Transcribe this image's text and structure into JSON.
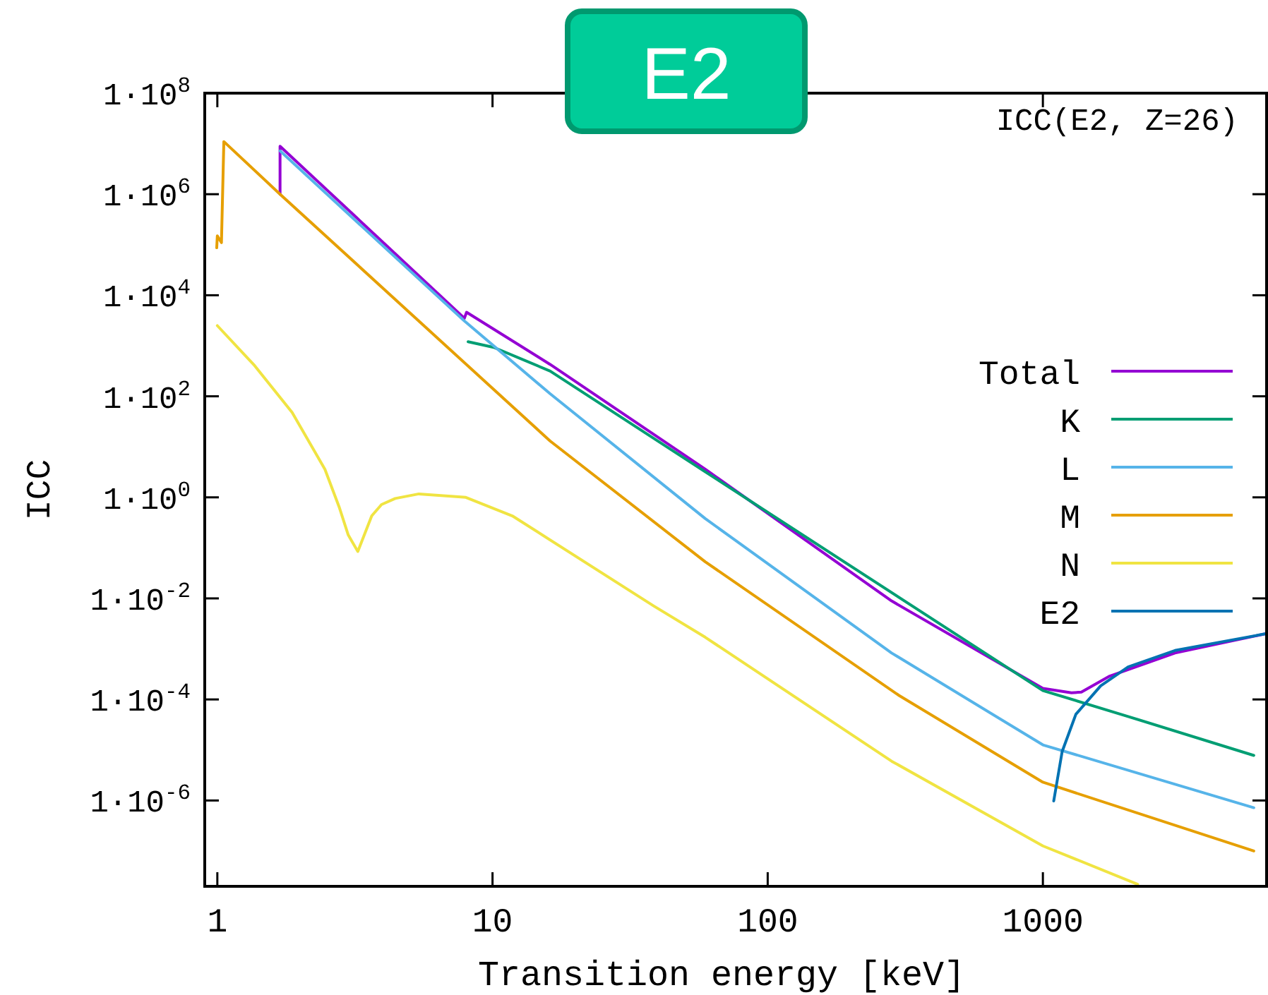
{
  "chart_data": {
    "type": "line",
    "title": "E2",
    "xlabel": "Transition energy [keV]",
    "ylabel": "ICC",
    "annotations": [
      "ICC(E2, Z=26)"
    ],
    "log": "xy",
    "xlim": [
      0.9,
      6500
    ],
    "ylim": [
      2e-08,
      100000000.0
    ],
    "xticks": [
      1,
      10,
      100,
      1000
    ],
    "yticks": [
      {
        "value": 100000000.0,
        "label": "1·10$^{8}$"
      },
      {
        "value": 1000000.0,
        "label": "1·10$^{6}$"
      },
      {
        "value": 10000.0,
        "label": "1·10$^{4}$"
      },
      {
        "value": 100,
        "label": "1·10$^{2}$"
      },
      {
        "value": 1,
        "label": "1·10$^{0}$"
      },
      {
        "value": 0.01,
        "label": "1·10$^{-2}$"
      },
      {
        "value": 0.0001,
        "label": "1·10$^{-4}$"
      },
      {
        "value": 1e-06,
        "label": "1·10$^{-6}$"
      }
    ],
    "legend": "right",
    "line_style": "solid",
    "marker": "none",
    "series": [
      {
        "name": "Total",
        "color": "#9400d3",
        "x": [
          1.69,
          1.69,
          7.9,
          8.05,
          16.2,
          59.3,
          282,
          1000,
          1270,
          1380,
          1750,
          3020,
          6460
        ],
        "values": [
          1000000,
          8900000,
          3500,
          4600,
          427,
          3.6,
          0.0089,
          0.000166,
          0.000135,
          0.00014,
          0.00029,
          0.00083,
          0.002
        ]
      },
      {
        "name": "K",
        "color": "#009e73",
        "x": [
          8.15,
          10.1,
          16.2,
          59.3,
          1000,
          2040,
          5840
        ],
        "values": [
          1200,
          930,
          316,
          3.2,
          0.00015,
          4.6e-05,
          7.8e-06
        ]
      },
      {
        "name": "L",
        "color": "#56b4e9",
        "x": [
          1.69,
          7.9,
          16.2,
          59.3,
          282,
          1000,
          5840
        ],
        "values": [
          7200000,
          3100,
          112,
          0.38,
          0.00083,
          1.26e-05,
          7.2e-07
        ]
      },
      {
        "name": "M",
        "color": "#e69f00",
        "x": [
          0.995,
          1.0,
          1.035,
          1.056,
          1.69,
          16.2,
          59.3,
          300,
          1000,
          5840
        ],
        "values": [
          87000,
          150000,
          110000,
          11000000,
          1000000,
          13,
          0.053,
          0.00012,
          2.3e-06,
          1e-07
        ]
      },
      {
        "name": "N",
        "color": "#f0e442",
        "x": [
          1.0,
          1.365,
          1.87,
          2.46,
          2.77,
          2.99,
          3.24,
          3.64,
          3.95,
          4.43,
          5.4,
          8.0,
          11.8,
          38.5,
          59.3,
          282,
          1000,
          2210
        ],
        "values": [
          2500,
          407,
          48,
          3.6,
          0.65,
          0.18,
          0.085,
          0.43,
          0.72,
          0.95,
          1.17,
          1.0,
          0.43,
          0.0071,
          0.0017,
          6e-06,
          1.26e-07,
          2.2e-08
        ]
      },
      {
        "name": "E2",
        "color": "#0072b2",
        "x": [
          1095,
          1175,
          1318,
          1622,
          2040,
          3020,
          6460
        ],
        "values": [
          9.8e-07,
          9.3e-06,
          5.1e-05,
          0.000186,
          0.00044,
          0.00093,
          0.002
        ]
      }
    ]
  }
}
